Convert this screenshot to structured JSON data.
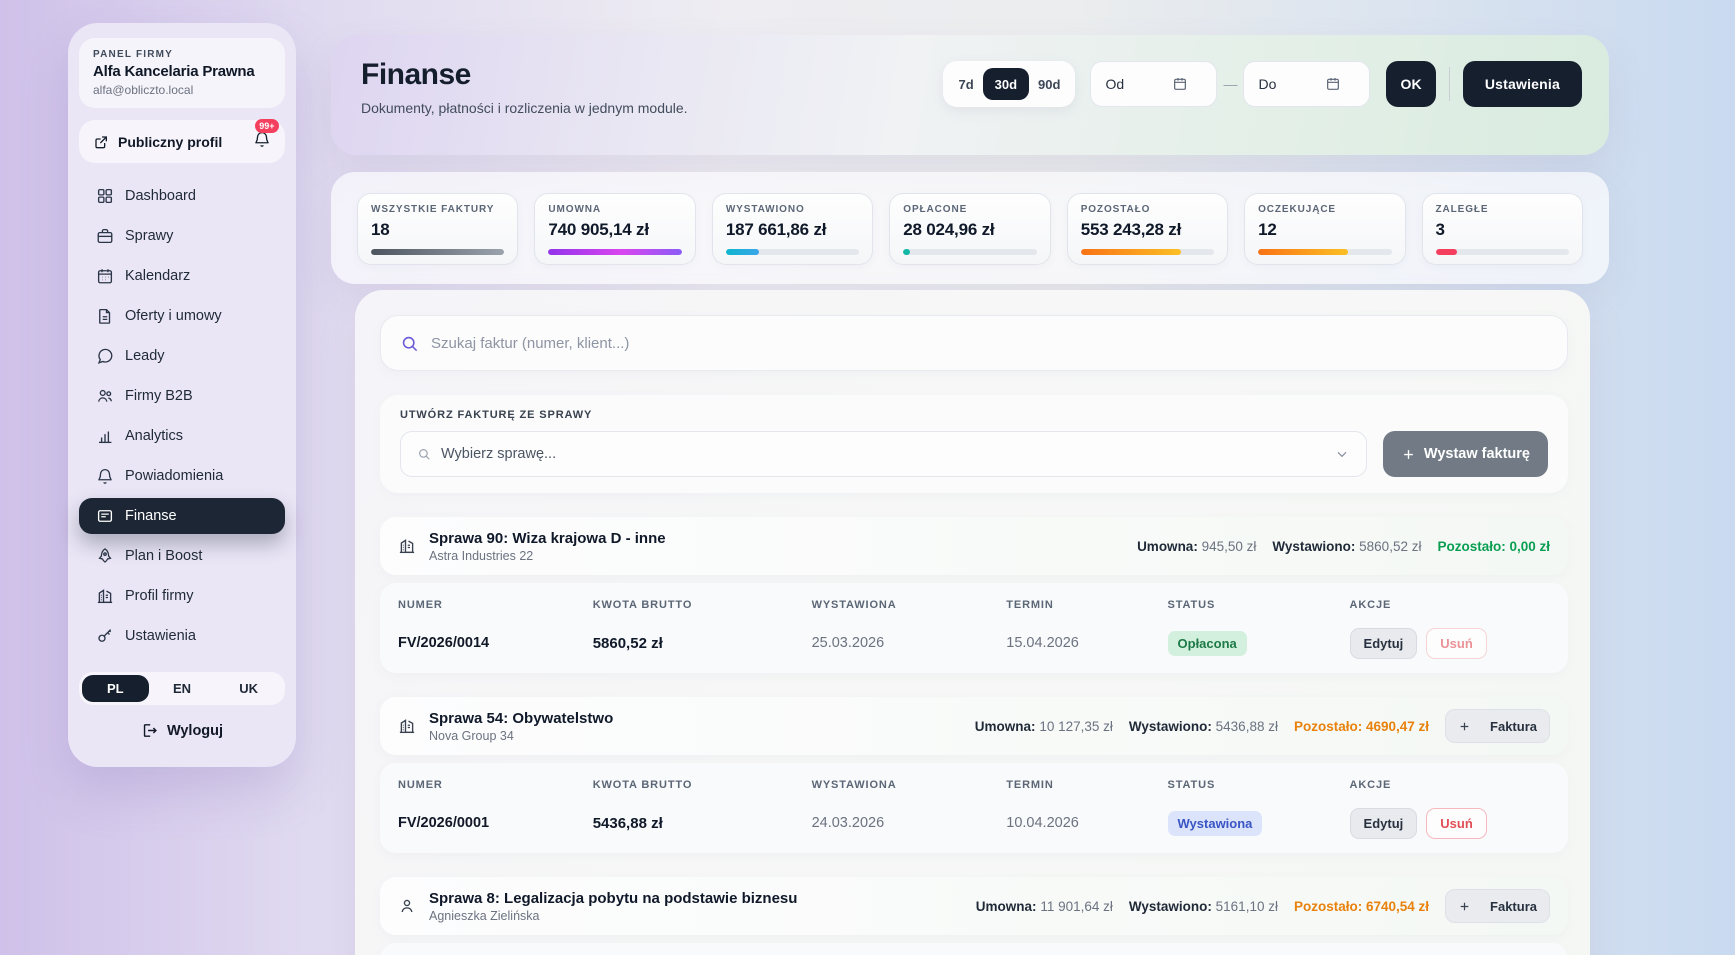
{
  "sidebar": {
    "panel_label": "PANEL FIRMY",
    "company_name": "Alfa Kancelaria Prawna",
    "company_email": "alfa@obliczto.local",
    "public_profile_label": "Publiczny profil",
    "notification_badge": "99+",
    "menu": [
      {
        "label": "Dashboard",
        "icon": "grid",
        "active": false
      },
      {
        "label": "Sprawy",
        "icon": "briefcase",
        "active": false
      },
      {
        "label": "Kalendarz",
        "icon": "calendar",
        "active": false
      },
      {
        "label": "Oferty i umowy",
        "icon": "document",
        "active": false
      },
      {
        "label": "Leady",
        "icon": "chat",
        "active": false
      },
      {
        "label": "Firmy B2B",
        "icon": "people",
        "active": false
      },
      {
        "label": "Analytics",
        "icon": "chart",
        "active": false
      },
      {
        "label": "Powiadomienia",
        "icon": "bell",
        "active": false
      },
      {
        "label": "Finanse",
        "icon": "invoice",
        "active": true
      },
      {
        "label": "Plan i Boost",
        "icon": "rocket",
        "active": false
      },
      {
        "label": "Profil firmy",
        "icon": "building",
        "active": false
      },
      {
        "label": "Ustawienia",
        "icon": "key",
        "active": false
      }
    ],
    "languages": [
      "PL",
      "EN",
      "UK"
    ],
    "active_language": "PL",
    "logout_label": "Wyloguj"
  },
  "header": {
    "title": "Finanse",
    "subtitle": "Dokumenty, płatności i rozliczenia w jednym module.",
    "range_options": [
      "7d",
      "30d",
      "90d"
    ],
    "active_range": "30d",
    "date_from_placeholder": "Od",
    "date_to_placeholder": "Do",
    "ok_label": "OK",
    "settings_label": "Ustawienia"
  },
  "stats": [
    {
      "label": "WSZYSTKIE FAKTURY",
      "value": "18",
      "fill": 100,
      "color": "slate"
    },
    {
      "label": "UMOWNA",
      "value": "740 905,14 zł",
      "fill": 100,
      "color": "purple"
    },
    {
      "label": "WYSTAWIONO",
      "value": "187 661,86 zł",
      "fill": 25,
      "color": "cyan"
    },
    {
      "label": "OPŁACONE",
      "value": "28 024,96 zł",
      "fill": 5,
      "color": "teal"
    },
    {
      "label": "POZOSTAŁO",
      "value": "553 243,28 zł",
      "fill": 75,
      "color": "orange"
    },
    {
      "label": "OCZEKUJĄCE",
      "value": "12",
      "fill": 67,
      "color": "orange"
    },
    {
      "label": "ZALEGŁE",
      "value": "3",
      "fill": 16,
      "color": "red"
    }
  ],
  "search": {
    "placeholder": "Szukaj faktur (numer, klient...)"
  },
  "create_invoice": {
    "section_label": "UTWÓRZ FAKTURĘ ZE SPRAWY",
    "select_placeholder": "Wybierz sprawę...",
    "button_label": "Wystaw fakturę"
  },
  "table_headers": [
    "NUMER",
    "KWOTA BRUTTO",
    "WYSTAWIONA",
    "TERMIN",
    "STATUS",
    "AKCJE"
  ],
  "metric_labels": {
    "umowna": "Umowna:",
    "wystawiono": "Wystawiono:",
    "pozostalo": "Pozostało:"
  },
  "cases": [
    {
      "title": "Sprawa 90: Wiza krajowa D - inne",
      "client": "Astra Industries 22",
      "icon": "building",
      "umowna": "945,50 zł",
      "wystawiono": "5860,52 zł",
      "pozostalo": "0,00 zł",
      "pozostalo_color": "green",
      "add_invoice_label": null,
      "invoices": [
        {
          "number": "FV/2026/0014",
          "gross": "5860,52 zł",
          "issued": "25.03.2026",
          "due": "15.04.2026",
          "status": "Opłacona",
          "status_type": "paid",
          "actions": [
            {
              "label": "Edytuj",
              "type": "edit"
            },
            {
              "label": "Usuń",
              "type": "delete",
              "muted": true
            }
          ]
        }
      ]
    },
    {
      "title": "Sprawa 54: Obywatelstwo",
      "client": "Nova Group 34",
      "icon": "building",
      "umowna": "10 127,35 zł",
      "wystawiono": "5436,88 zł",
      "pozostalo": "4690,47 zł",
      "pozostalo_color": "orange",
      "add_invoice_label": "Faktura",
      "invoices": [
        {
          "number": "FV/2026/0001",
          "gross": "5436,88 zł",
          "issued": "24.03.2026",
          "due": "10.04.2026",
          "status": "Wystawiona",
          "status_type": "issued",
          "actions": [
            {
              "label": "Edytuj",
              "type": "edit"
            },
            {
              "label": "Usuń",
              "type": "delete",
              "muted": false
            }
          ]
        }
      ]
    },
    {
      "title": "Sprawa 8: Legalizacja pobytu na podstawie biznesu",
      "client": "Agnieszka Zielińska",
      "icon": "person",
      "umowna": "11 901,64 zł",
      "wystawiono": "5161,10 zł",
      "pozostalo": "6740,54 zł",
      "pozostalo_color": "orange",
      "add_invoice_label": "Faktura",
      "invoices": []
    }
  ]
}
